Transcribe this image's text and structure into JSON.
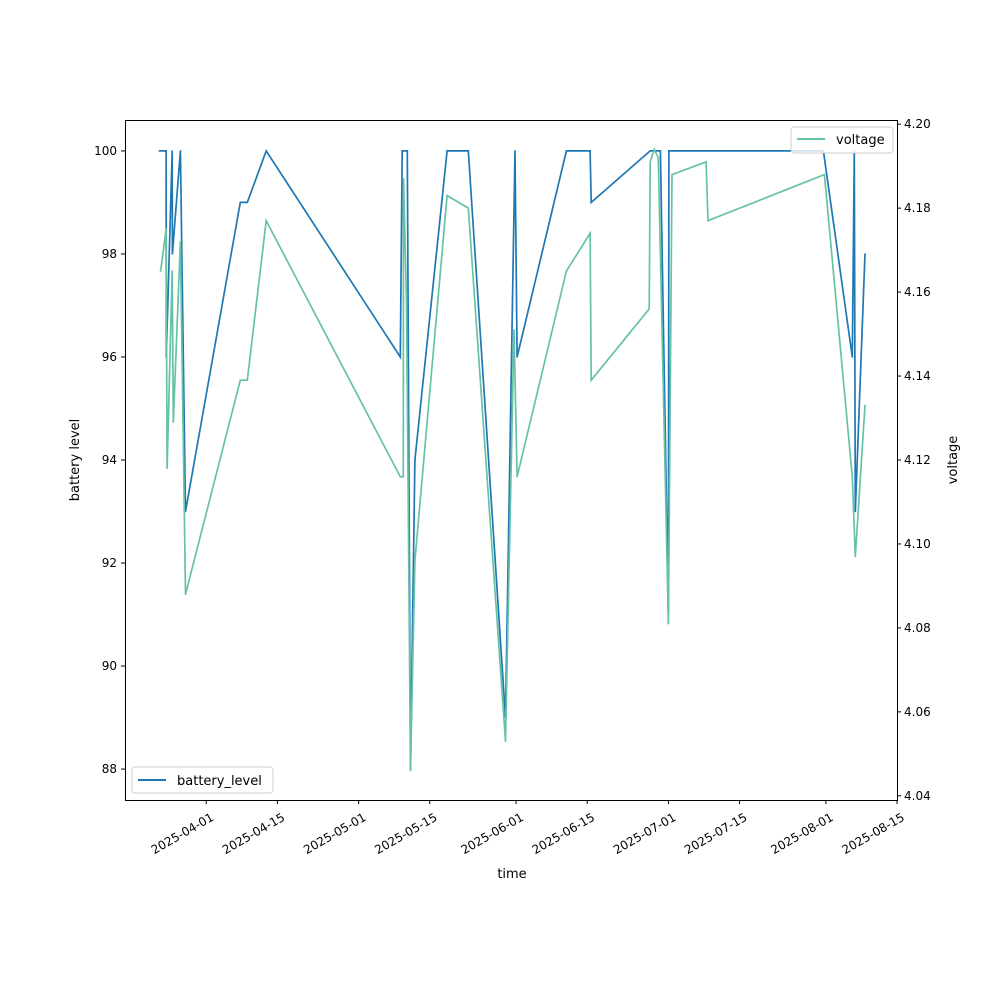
{
  "chart_data": {
    "type": "line",
    "title": "",
    "xlabel": "time",
    "ylabel": "battery level",
    "y2label": "voltage",
    "ylim": [
      87.4,
      100.6
    ],
    "y2lim": [
      4.039,
      4.201
    ],
    "xlim": [
      "2025-03-16T00:00",
      "2025-08-15T00:00"
    ],
    "xticks": [
      "2025-04-01",
      "2025-04-15",
      "2025-05-01",
      "2025-05-15",
      "2025-06-01",
      "2025-06-15",
      "2025-07-01",
      "2025-07-15",
      "2025-08-01",
      "2025-08-15"
    ],
    "yticks": [
      88,
      90,
      92,
      94,
      96,
      98,
      100
    ],
    "y2ticks": [
      "4.04",
      "4.06",
      "4.08",
      "4.10",
      "4.12",
      "4.14",
      "4.16",
      "4.18",
      "4.20"
    ],
    "grid": false,
    "series": [
      {
        "name": "battery_level",
        "axis": "left",
        "color": "#1f77b4",
        "legend": "lower-left",
        "x": [
          "2025-03-22T18:00",
          "2025-03-24T02:00",
          "2025-03-24T03:00",
          "2025-03-25T07:00",
          "2025-03-25T08:00",
          "2025-03-26T22:00",
          "2025-03-27T22:00",
          "2025-04-07T17:00",
          "2025-04-09T02:00",
          "2025-04-12T19:00",
          "2025-05-09T05:00",
          "2025-05-09T14:00",
          "2025-05-10T14:00",
          "2025-05-11T05:00",
          "2025-05-12T02:00",
          "2025-05-18T10:00",
          "2025-05-22T14:00",
          "2025-05-29T22:00",
          "2025-05-31T19:00",
          "2025-06-01T05:00",
          "2025-06-10T22:00",
          "2025-06-15T14:00",
          "2025-06-15T19:00",
          "2025-06-27T10:00",
          "2025-06-29T10:00",
          "2025-07-01T00:00",
          "2025-07-01T02:00",
          "2025-07-31T12:00",
          "2025-08-06T05:00",
          "2025-08-06T14:00",
          "2025-08-06T19:00",
          "2025-08-08T17:00"
        ],
        "values": [
          100,
          100,
          96,
          100,
          98,
          100,
          93,
          99,
          99,
          100,
          96,
          100,
          100,
          88,
          94,
          100,
          100,
          89,
          100,
          96,
          100,
          100,
          99,
          100,
          100,
          91,
          100,
          100,
          96,
          100,
          93,
          98
        ]
      },
      {
        "name": "voltage",
        "axis": "right",
        "color": "#66c2a5",
        "legend": "upper-right",
        "x": [
          "2025-03-23T00:00",
          "2025-03-24T02:00",
          "2025-03-24T07:00",
          "2025-03-25T07:00",
          "2025-03-25T12:00",
          "2025-03-26T22:00",
          "2025-03-27T22:00",
          "2025-04-07T17:00",
          "2025-04-09T02:00",
          "2025-04-12T19:00",
          "2025-05-09T05:00",
          "2025-05-09T19:00",
          "2025-05-09T20:00",
          "2025-05-10T10:00",
          "2025-05-11T05:00",
          "2025-05-12T02:00",
          "2025-05-18T10:00",
          "2025-05-22T14:00",
          "2025-05-29T22:00",
          "2025-05-31T14:00",
          "2025-06-01T05:00",
          "2025-06-10T22:00",
          "2025-06-15T14:00",
          "2025-06-15T19:00",
          "2025-06-27T05:00",
          "2025-06-27T10:00",
          "2025-06-28T05:00",
          "2025-06-29T00:00",
          "2025-07-01T00:00",
          "2025-07-01T17:00",
          "2025-07-08T10:00",
          "2025-07-08T19:00",
          "2025-07-31T17:00",
          "2025-08-06T05:00",
          "2025-08-06T19:00",
          "2025-08-08T17:00"
        ],
        "values": [
          4.165,
          4.175,
          4.118,
          4.165,
          4.129,
          4.172,
          4.088,
          4.139,
          4.139,
          4.177,
          4.116,
          4.116,
          4.187,
          4.158,
          4.046,
          4.096,
          4.183,
          4.18,
          4.053,
          4.151,
          4.116,
          4.165,
          4.174,
          4.139,
          4.156,
          4.191,
          4.194,
          4.192,
          4.081,
          4.188,
          4.191,
          4.177,
          4.188,
          4.116,
          4.097,
          4.133
        ]
      }
    ]
  }
}
